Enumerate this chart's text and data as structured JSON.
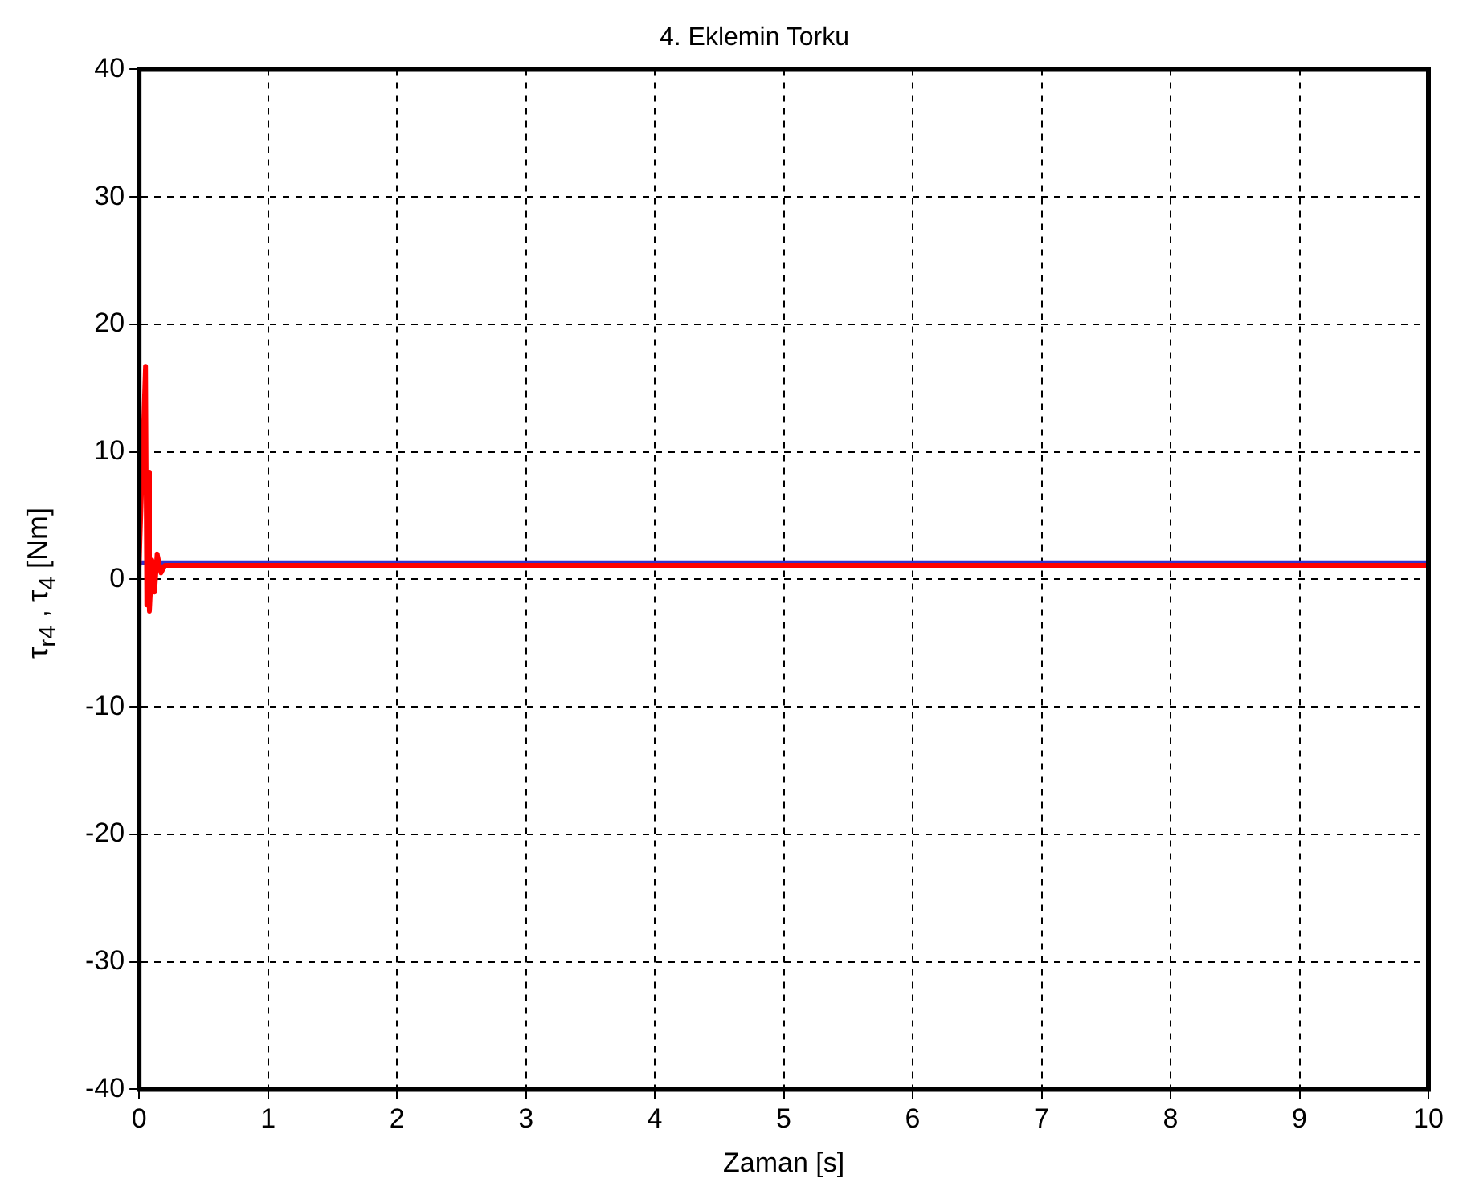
{
  "chart_data": {
    "type": "line",
    "title": "4. Eklemin Torku",
    "xlabel": "Zaman [s]",
    "ylabel": "τ$_{r4}$ , τ$_{4}$ [Nm]",
    "xlim": [
      0,
      10
    ],
    "xticks": [
      0,
      1,
      2,
      3,
      4,
      5,
      6,
      7,
      8,
      9,
      10
    ],
    "ylim": [
      -40,
      40
    ],
    "yticks": [
      -40,
      -30,
      -20,
      -10,
      0,
      10,
      20,
      30,
      40
    ],
    "grid": true,
    "marker": "none",
    "line_style": "solid",
    "series": [
      {
        "color": "#3333cc",
        "x": [
          0,
          10
        ],
        "values": [
          1.3,
          1.3
        ]
      },
      {
        "color": "#ff0000",
        "x": [
          0,
          0.05,
          0.06,
          0.07,
          0.08,
          0.1,
          0.12,
          0.14,
          0.17,
          0.2,
          10
        ],
        "values": [
          1,
          16.7,
          -2,
          8.4,
          -2.5,
          1.5,
          -1,
          2,
          0.5,
          1.1,
          1.1
        ]
      }
    ]
  }
}
